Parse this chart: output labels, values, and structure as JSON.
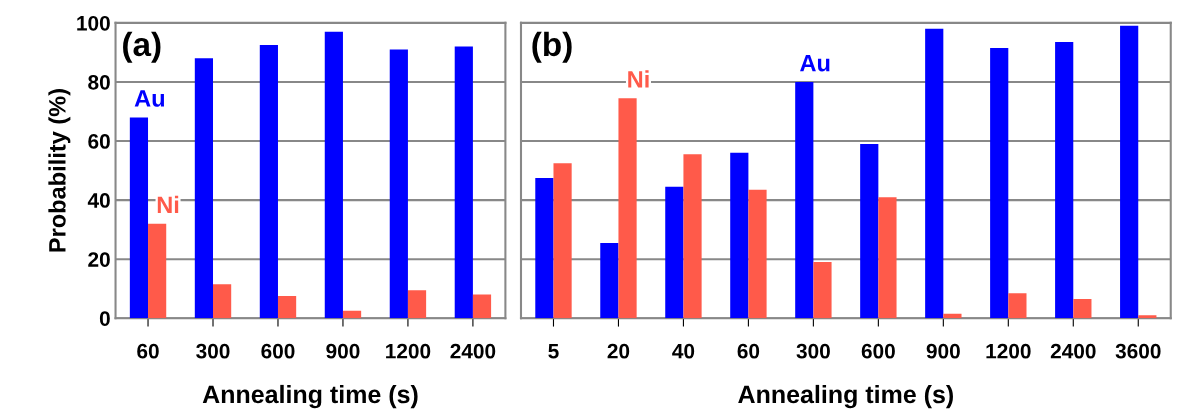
{
  "chart_data": [
    {
      "type": "bar",
      "xlabel": "Annealing time (s)",
      "ylabel": "Probability (%)",
      "categories": [
        "60",
        "300",
        "600",
        "900",
        "1200",
        "2400"
      ],
      "series": [
        {
          "name": "Au",
          "color": "#0000ff",
          "values": [
            68,
            88,
            92.5,
            97,
            91,
            92
          ]
        },
        {
          "name": "Ni",
          "color": "#ff5a4a",
          "values": [
            32,
            11.5,
            7.5,
            2.5,
            9.5,
            8
          ]
        }
      ],
      "ylim": [
        0,
        100
      ],
      "yticks": [
        0,
        20,
        40,
        60,
        80,
        100
      ],
      "grid": "y",
      "annotations": [
        "(a)"
      ]
    },
    {
      "type": "bar",
      "xlabel": "Annealing time (s)",
      "categories": [
        "5",
        "20",
        "40",
        "60",
        "300",
        "600",
        "900",
        "1200",
        "2400",
        "3600"
      ],
      "series": [
        {
          "name": "Au",
          "color": "#0000ff",
          "values": [
            47.5,
            25.5,
            44.5,
            56,
            80,
            59,
            98,
            91.5,
            93.5,
            99
          ]
        },
        {
          "name": "Ni",
          "color": "#ff5a4a",
          "values": [
            52.5,
            74.5,
            55.5,
            43.5,
            19,
            41,
            1.5,
            8.5,
            6.5,
            1
          ]
        }
      ],
      "ylim": [
        0,
        100
      ],
      "yticks": [
        0,
        20,
        40,
        60,
        80,
        100
      ],
      "grid": "y",
      "tick_labels": "x",
      "annotations": [
        "(b)"
      ]
    }
  ]
}
